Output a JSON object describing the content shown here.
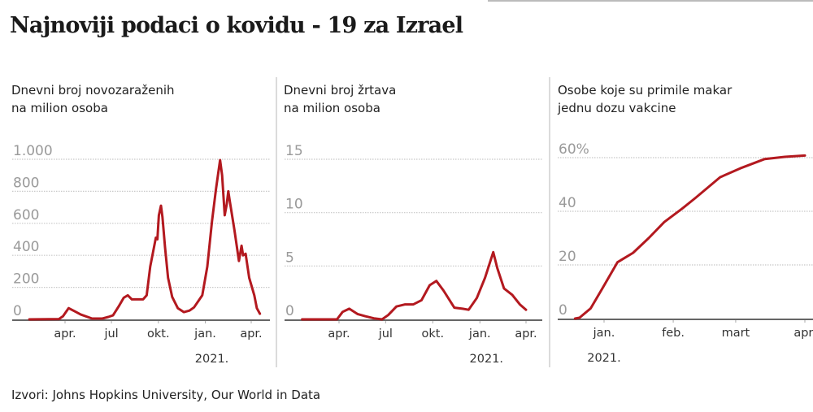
{
  "title": "Najnoviji podaci o kovidu - 19 za Izrael",
  "source": "Izvori: Johns Hopkins University, Our World in Data",
  "colors": {
    "line": "#b3191f",
    "grid": "#c8c8c8",
    "axis": "#666666",
    "ytick": "#9a9a9a",
    "xtick": "#333333"
  },
  "chart_data": [
    {
      "type": "line",
      "title": "Dnevni broj novozaraženih na milion osoba",
      "title_lines": [
        "Dnevni broj novozaraženih",
        "na milion osoba"
      ],
      "ylim": [
        0,
        1000
      ],
      "yticks": [
        {
          "value": 0,
          "label": "0"
        },
        {
          "value": 200,
          "label": "200"
        },
        {
          "value": 400,
          "label": "400"
        },
        {
          "value": 600,
          "label": "600"
        },
        {
          "value": 800,
          "label": "800"
        },
        {
          "value": 1000,
          "label": "1.000"
        }
      ],
      "xticks": [
        {
          "date": "2020-04-01",
          "label": "apr."
        },
        {
          "date": "2020-07-01",
          "label": "jul"
        },
        {
          "date": "2020-10-01",
          "label": "okt."
        },
        {
          "date": "2021-01-01",
          "label": "jan."
        },
        {
          "date": "2021-04-01",
          "label": "apr."
        }
      ],
      "year_label": {
        "date": "2021-01-01",
        "label": "2021."
      },
      "grid": true,
      "points": [
        [
          "2020-01-22",
          0
        ],
        [
          "2020-03-20",
          2
        ],
        [
          "2020-03-28",
          20
        ],
        [
          "2020-04-08",
          70
        ],
        [
          "2020-04-20",
          50
        ],
        [
          "2020-05-02",
          30
        ],
        [
          "2020-05-24",
          5
        ],
        [
          "2020-06-13",
          5
        ],
        [
          "2020-06-25",
          15
        ],
        [
          "2020-07-04",
          25
        ],
        [
          "2020-07-15",
          80
        ],
        [
          "2020-07-25",
          135
        ],
        [
          "2020-08-02",
          150
        ],
        [
          "2020-08-10",
          125
        ],
        [
          "2020-08-17",
          125
        ],
        [
          "2020-09-01",
          125
        ],
        [
          "2020-09-08",
          150
        ],
        [
          "2020-09-15",
          330
        ],
        [
          "2020-09-26",
          510
        ],
        [
          "2020-09-29",
          500
        ],
        [
          "2020-10-02",
          650
        ],
        [
          "2020-10-06",
          710
        ],
        [
          "2020-10-09",
          640
        ],
        [
          "2020-10-14",
          450
        ],
        [
          "2020-10-20",
          260
        ],
        [
          "2020-10-28",
          140
        ],
        [
          "2020-11-08",
          70
        ],
        [
          "2020-11-20",
          45
        ],
        [
          "2020-12-01",
          55
        ],
        [
          "2020-12-10",
          75
        ],
        [
          "2020-12-26",
          150
        ],
        [
          "2021-01-05",
          330
        ],
        [
          "2021-01-14",
          610
        ],
        [
          "2021-01-22",
          815
        ],
        [
          "2021-01-30",
          995
        ],
        [
          "2021-02-03",
          900
        ],
        [
          "2021-02-08",
          650
        ],
        [
          "2021-02-12",
          720
        ],
        [
          "2021-02-15",
          800
        ],
        [
          "2021-02-18",
          740
        ],
        [
          "2021-02-27",
          560
        ],
        [
          "2021-03-08",
          365
        ],
        [
          "2021-03-13",
          460
        ],
        [
          "2021-03-16",
          400
        ],
        [
          "2021-03-21",
          410
        ],
        [
          "2021-03-28",
          260
        ],
        [
          "2021-04-07",
          150
        ],
        [
          "2021-04-12",
          70
        ],
        [
          "2021-04-18",
          35
        ]
      ]
    },
    {
      "type": "line",
      "title": "Dnevni broj žrtava na milion osoba",
      "title_lines": [
        "Dnevni broj žrtava",
        "na milion osoba"
      ],
      "ylim": [
        0,
        15
      ],
      "yticks": [
        {
          "value": 0,
          "label": "0"
        },
        {
          "value": 5,
          "label": "5"
        },
        {
          "value": 10,
          "label": "10"
        },
        {
          "value": 15,
          "label": "15"
        }
      ],
      "xticks": [
        {
          "date": "2020-04-01",
          "label": "apr."
        },
        {
          "date": "2020-07-01",
          "label": "jul"
        },
        {
          "date": "2020-10-01",
          "label": "okt."
        },
        {
          "date": "2021-01-01",
          "label": "jan."
        },
        {
          "date": "2021-04-01",
          "label": "apr."
        }
      ],
      "year_label": {
        "date": "2021-01-01",
        "label": "2021."
      },
      "grid": true,
      "points": [
        [
          "2020-01-20",
          0
        ],
        [
          "2020-03-28",
          0
        ],
        [
          "2020-04-08",
          0.7
        ],
        [
          "2020-04-21",
          1.0
        ],
        [
          "2020-05-07",
          0.5
        ],
        [
          "2020-05-22",
          0.3
        ],
        [
          "2020-06-08",
          0.1
        ],
        [
          "2020-06-24",
          0.0
        ],
        [
          "2020-07-06",
          0.4
        ],
        [
          "2020-07-22",
          1.2
        ],
        [
          "2020-08-08",
          1.4
        ],
        [
          "2020-08-24",
          1.4
        ],
        [
          "2020-09-09",
          1.8
        ],
        [
          "2020-09-25",
          3.2
        ],
        [
          "2020-10-08",
          3.6
        ],
        [
          "2020-10-22",
          2.7
        ],
        [
          "2020-11-12",
          1.1
        ],
        [
          "2020-11-28",
          1.0
        ],
        [
          "2020-12-10",
          0.9
        ],
        [
          "2020-12-26",
          2.0
        ],
        [
          "2021-01-11",
          3.9
        ],
        [
          "2021-01-27",
          6.3
        ],
        [
          "2021-02-04",
          4.8
        ],
        [
          "2021-02-17",
          2.9
        ],
        [
          "2021-03-05",
          2.3
        ],
        [
          "2021-03-20",
          1.4
        ],
        [
          "2021-04-01",
          0.9
        ]
      ]
    },
    {
      "type": "line",
      "title": "Osobe koje su primile makar jednu dozu vakcine",
      "title_lines": [
        "Osobe koje su primile makar",
        "jednu dozu vakcine"
      ],
      "ylim": [
        0,
        60
      ],
      "yunit": "%",
      "yticks": [
        {
          "value": 0,
          "label": "0"
        },
        {
          "value": 20,
          "label": "20"
        },
        {
          "value": 40,
          "label": "40"
        },
        {
          "value": 60,
          "label": "60%"
        }
      ],
      "xticks": [
        {
          "date": "2021-01-01",
          "label": "jan."
        },
        {
          "date": "2021-02-01",
          "label": "feb."
        },
        {
          "date": "2021-03-01",
          "label": "mart"
        },
        {
          "date": "2021-04-01",
          "label": "apr."
        }
      ],
      "year_label": {
        "date": "2021-01-01",
        "label": "2021."
      },
      "grid": true,
      "points": [
        [
          "2020-12-19",
          0
        ],
        [
          "2020-12-21",
          0.3
        ],
        [
          "2020-12-26",
          3.8
        ],
        [
          "2020-12-31",
          10.9
        ],
        [
          "2021-01-07",
          21
        ],
        [
          "2021-01-14",
          24.5
        ],
        [
          "2021-01-21",
          30
        ],
        [
          "2021-01-28",
          36
        ],
        [
          "2021-02-05",
          41
        ],
        [
          "2021-02-11",
          45
        ],
        [
          "2021-02-22",
          52.7
        ],
        [
          "2021-03-03",
          56
        ],
        [
          "2021-03-14",
          59.5
        ],
        [
          "2021-03-23",
          60.3
        ],
        [
          "2021-04-01",
          60.8
        ]
      ]
    }
  ]
}
